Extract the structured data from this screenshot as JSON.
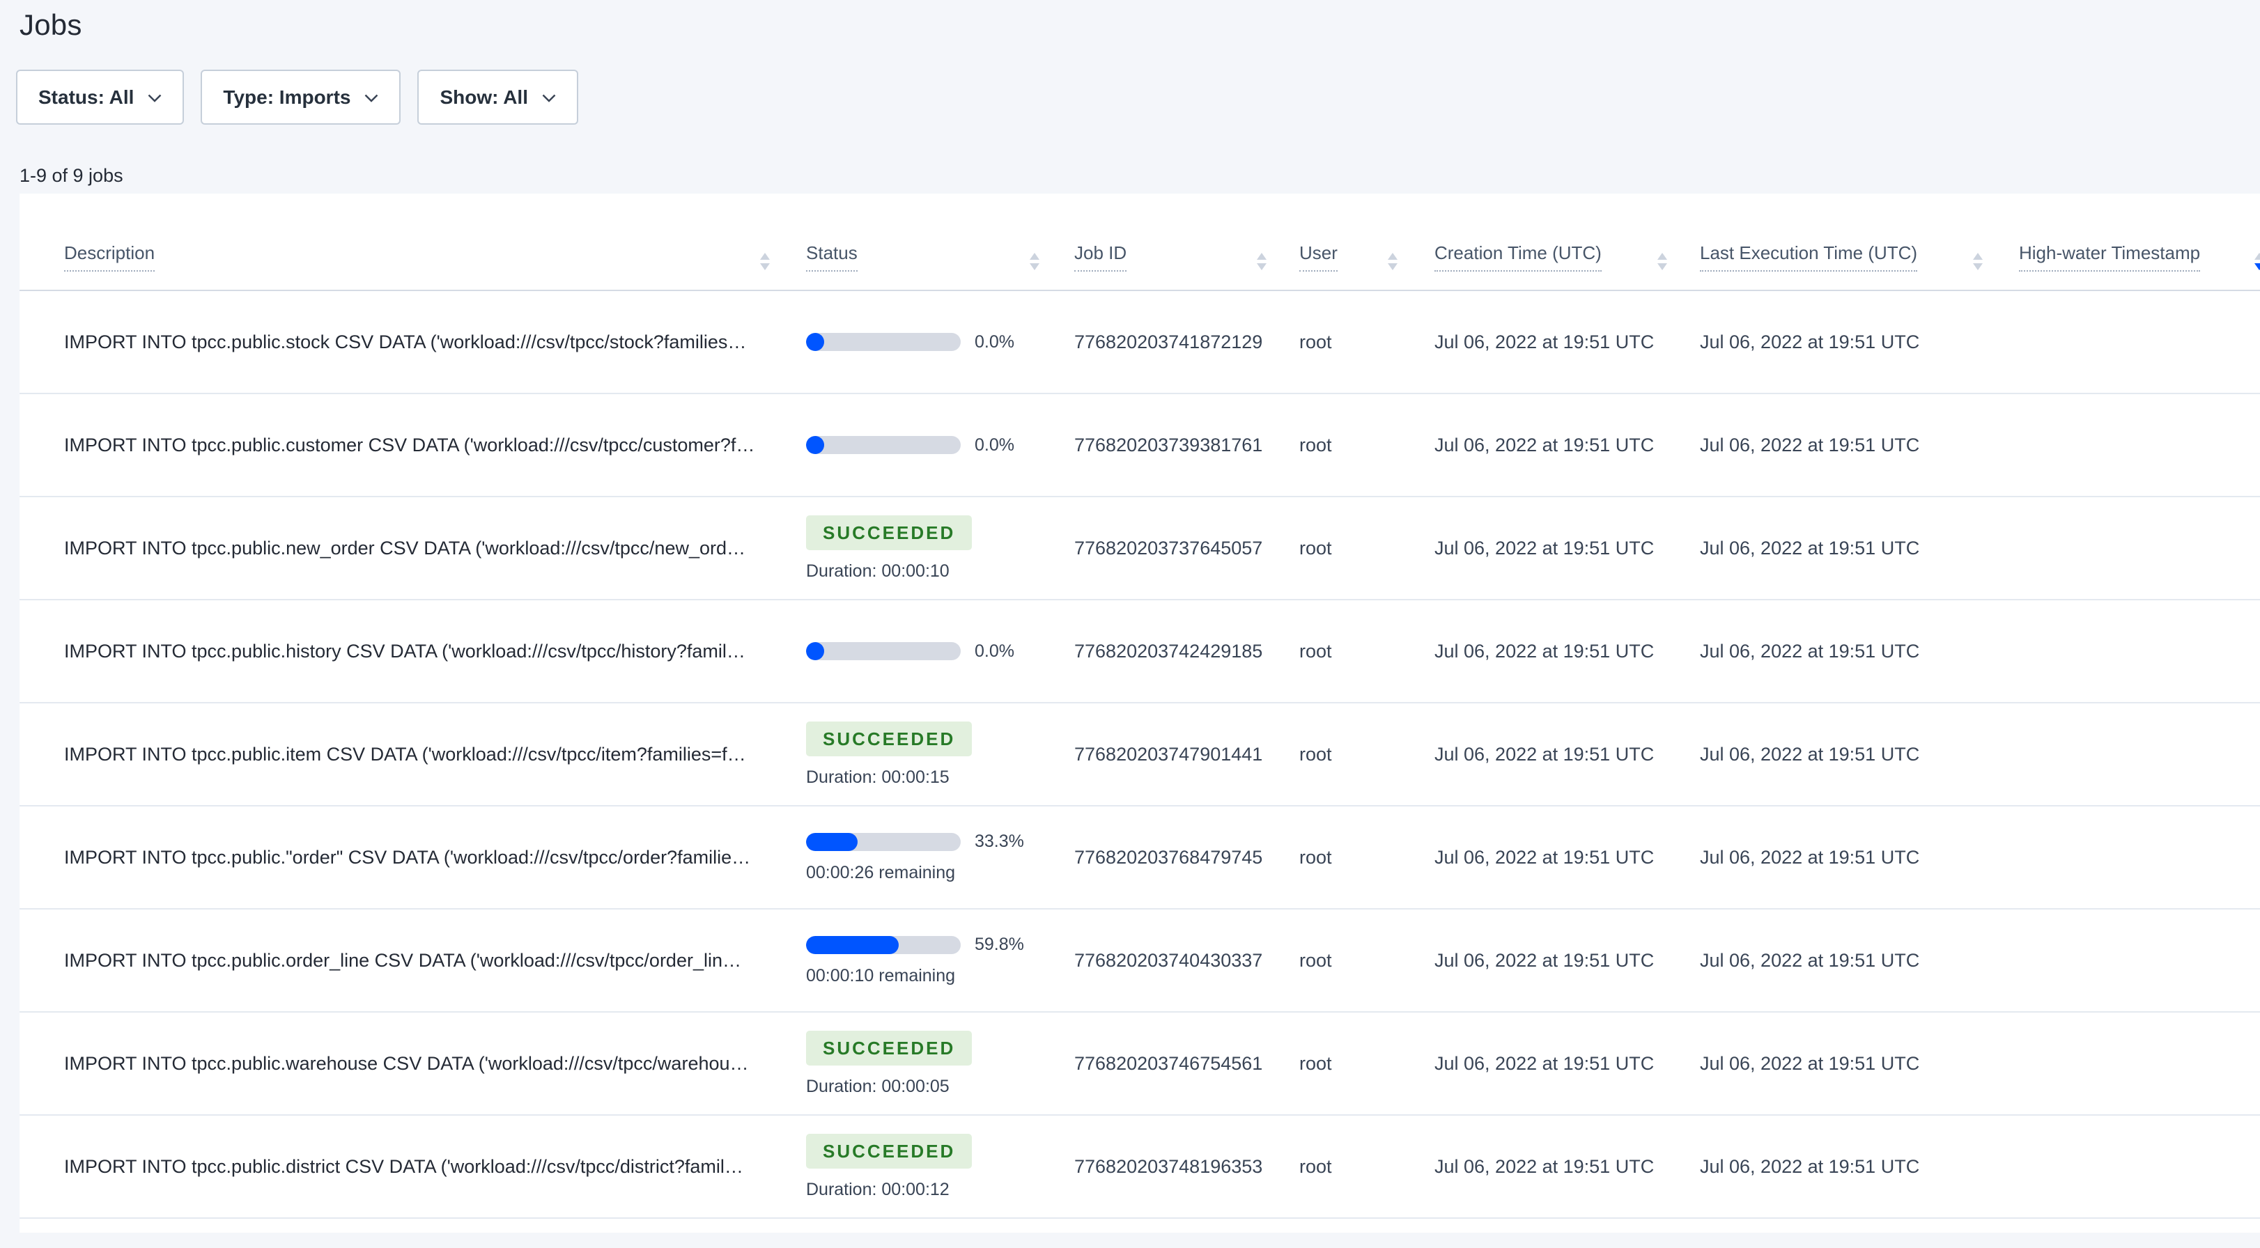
{
  "page": {
    "title": "Jobs",
    "jobs_count": "1-9 of 9 jobs"
  },
  "filters": [
    {
      "id": "status",
      "label": "Status: All"
    },
    {
      "id": "type",
      "label": "Type: Imports"
    },
    {
      "id": "show",
      "label": "Show: All"
    }
  ],
  "table": {
    "columns": [
      {
        "key": "description",
        "label": "Description"
      },
      {
        "key": "status",
        "label": "Status"
      },
      {
        "key": "job_id",
        "label": "Job ID"
      },
      {
        "key": "user",
        "label": "User"
      },
      {
        "key": "created",
        "label": "Creation Time (UTC)"
      },
      {
        "key": "last_exec",
        "label": "Last Execution Time (UTC)"
      },
      {
        "key": "high_water",
        "label": "High-water Timestamp",
        "sort_active": "desc"
      }
    ],
    "rows": [
      {
        "description": "IMPORT INTO tpcc.public.stock CSV DATA ('workload:///csv/tpcc/stock?families…",
        "status": {
          "kind": "running",
          "percent": 0.0,
          "percent_label": "0.0%",
          "remaining": ""
        },
        "job_id": "776820203741872129",
        "user": "root",
        "created": "Jul 06, 2022 at 19:51 UTC",
        "last_exec": "Jul 06, 2022 at 19:51 UTC",
        "high_water": ""
      },
      {
        "description": "IMPORT INTO tpcc.public.customer CSV DATA ('workload:///csv/tpcc/customer?f…",
        "status": {
          "kind": "running",
          "percent": 0.0,
          "percent_label": "0.0%",
          "remaining": ""
        },
        "job_id": "776820203739381761",
        "user": "root",
        "created": "Jul 06, 2022 at 19:51 UTC",
        "last_exec": "Jul 06, 2022 at 19:51 UTC",
        "high_water": ""
      },
      {
        "description": "IMPORT INTO tpcc.public.new_order CSV DATA ('workload:///csv/tpcc/new_ord…",
        "status": {
          "kind": "succeeded",
          "badge": "SUCCEEDED",
          "duration": "Duration: 00:00:10"
        },
        "job_id": "776820203737645057",
        "user": "root",
        "created": "Jul 06, 2022 at 19:51 UTC",
        "last_exec": "Jul 06, 2022 at 19:51 UTC",
        "high_water": ""
      },
      {
        "description": "IMPORT INTO tpcc.public.history CSV DATA ('workload:///csv/tpcc/history?famil…",
        "status": {
          "kind": "running",
          "percent": 0.0,
          "percent_label": "0.0%",
          "remaining": ""
        },
        "job_id": "776820203742429185",
        "user": "root",
        "created": "Jul 06, 2022 at 19:51 UTC",
        "last_exec": "Jul 06, 2022 at 19:51 UTC",
        "high_water": ""
      },
      {
        "description": "IMPORT INTO tpcc.public.item CSV DATA ('workload:///csv/tpcc/item?families=f…",
        "status": {
          "kind": "succeeded",
          "badge": "SUCCEEDED",
          "duration": "Duration: 00:00:15"
        },
        "job_id": "776820203747901441",
        "user": "root",
        "created": "Jul 06, 2022 at 19:51 UTC",
        "last_exec": "Jul 06, 2022 at 19:51 UTC",
        "high_water": ""
      },
      {
        "description": "IMPORT INTO tpcc.public.\"order\" CSV DATA ('workload:///csv/tpcc/order?familie…",
        "status": {
          "kind": "running",
          "percent": 33.3,
          "percent_label": "33.3%",
          "remaining": "00:00:26 remaining"
        },
        "job_id": "776820203768479745",
        "user": "root",
        "created": "Jul 06, 2022 at 19:51 UTC",
        "last_exec": "Jul 06, 2022 at 19:51 UTC",
        "high_water": ""
      },
      {
        "description": "IMPORT INTO tpcc.public.order_line CSV DATA ('workload:///csv/tpcc/order_lin…",
        "status": {
          "kind": "running",
          "percent": 59.8,
          "percent_label": "59.8%",
          "remaining": "00:00:10 remaining"
        },
        "job_id": "776820203740430337",
        "user": "root",
        "created": "Jul 06, 2022 at 19:51 UTC",
        "last_exec": "Jul 06, 2022 at 19:51 UTC",
        "high_water": ""
      },
      {
        "description": "IMPORT INTO tpcc.public.warehouse CSV DATA ('workload:///csv/tpcc/warehou…",
        "status": {
          "kind": "succeeded",
          "badge": "SUCCEEDED",
          "duration": "Duration: 00:00:05"
        },
        "job_id": "776820203746754561",
        "user": "root",
        "created": "Jul 06, 2022 at 19:51 UTC",
        "last_exec": "Jul 06, 2022 at 19:51 UTC",
        "high_water": ""
      },
      {
        "description": "IMPORT INTO tpcc.public.district CSV DATA ('workload:///csv/tpcc/district?famil…",
        "status": {
          "kind": "succeeded",
          "badge": "SUCCEEDED",
          "duration": "Duration: 00:00:12"
        },
        "job_id": "776820203748196353",
        "user": "root",
        "created": "Jul 06, 2022 at 19:51 UTC",
        "last_exec": "Jul 06, 2022 at 19:51 UTC",
        "high_water": ""
      }
    ]
  },
  "icons": {
    "filter_chevron": "chevron-down-icon",
    "column_sort": "sort-arrows-icon"
  },
  "colors": {
    "accent_blue": "#0055ff",
    "progress_track": "#d6dae3",
    "success_bg": "#e2f0de",
    "success_text": "#277a27",
    "page_bg": "#f4f6fa",
    "header_text": "#475568",
    "body_text": "#394455"
  }
}
